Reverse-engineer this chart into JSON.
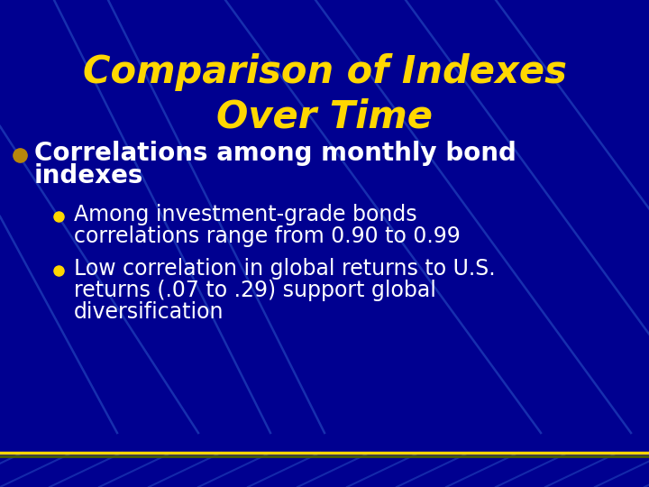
{
  "title_line1": "Comparison of Indexes",
  "title_line2": "Over Time",
  "title_color": "#FFD700",
  "title_fontsize": 30,
  "title_font_weight": "bold",
  "title_font_style": "italic",
  "bg_color": "#000090",
  "bullet1_text_line1": "Correlations among monthly bond",
  "bullet1_text_line2": "indexes",
  "bullet1_color": "#FFFFFF",
  "bullet1_fontsize": 20,
  "bullet1_marker_color": "#B8860B",
  "sub_bullet1_line1": "Among investment-grade bonds",
  "sub_bullet1_line2": "correlations range from 0.90 to 0.99",
  "sub_bullet2_line1": "Low correlation in global returns to U.S.",
  "sub_bullet2_line2": "returns (.07 to .29) support global",
  "sub_bullet2_line3": "diversification",
  "sub_bullet_color": "#FFFFFF",
  "sub_bullet_fontsize": 17,
  "sub_bullet_marker_color": "#FFD700",
  "footer_color1": "#FFD700",
  "footer_color2": "#4a5e00",
  "line_color": "#2244BB",
  "figsize": [
    7.2,
    5.4
  ],
  "dpi": 100
}
